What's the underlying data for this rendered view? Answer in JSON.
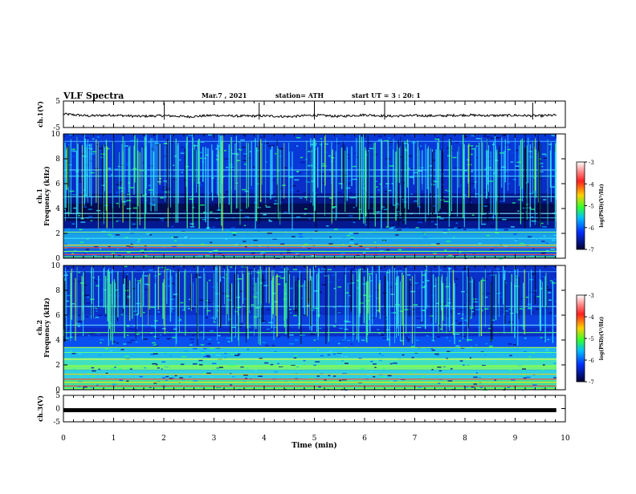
{
  "header": {
    "title": "VLF Spectra",
    "date": "Mar.7 , 2021",
    "station": "station= ATH",
    "start": "start UT =  3 : 20: 1"
  },
  "colorbar": {
    "label": "log(PSD)(V²/Hz)",
    "ticks": [
      "-3",
      "-4",
      "-5",
      "-6",
      "-7"
    ],
    "colors": [
      "#ffffff",
      "#ff2020",
      "#ffd000",
      "#30ff30",
      "#00c0ff",
      "#0030ff",
      "#000030"
    ]
  },
  "chart_data": [
    {
      "type": "line",
      "name": "ch1-waveform",
      "ylabel": "ch.1(V)",
      "ylim": [
        -5,
        5
      ],
      "yticks": [
        "5",
        "-5"
      ],
      "xlim": [
        0,
        10
      ],
      "x": [
        0,
        0.5,
        1,
        1.5,
        2,
        2.5,
        3,
        3.5,
        4,
        4.5,
        5,
        5.5,
        6,
        6.5,
        7,
        7.5,
        8,
        8.5,
        9,
        9.5,
        9.82
      ],
      "y": [
        0.1,
        -0.6,
        -0.3,
        -0.8,
        -0.5,
        -0.9,
        -0.4,
        -0.7,
        -0.6,
        -0.9,
        -0.3,
        -0.8,
        -0.2,
        -0.7,
        -0.5,
        -0.6,
        -0.3,
        -0.5,
        -0.4,
        -0.6,
        -0.3
      ]
    },
    {
      "type": "heatmap",
      "name": "ch1-spectrogram",
      "ylabel_top": "ch.1",
      "ylabel": "Frequency (kHz)",
      "ylim": [
        0,
        10
      ],
      "yticks": [
        "10",
        "8",
        "6",
        "4",
        "2",
        "0"
      ]
    },
    {
      "type": "heatmap",
      "name": "ch2-spectrogram",
      "ylabel_top": "ch.2",
      "ylabel": "Frequency (kHz)",
      "ylim": [
        0,
        10
      ],
      "yticks": [
        "10",
        "8",
        "6",
        "4",
        "2",
        "0"
      ]
    },
    {
      "type": "line",
      "name": "ch3-waveform",
      "ylabel": "ch.3(V)",
      "ylim": [
        -5,
        5
      ],
      "yticks": [
        "5",
        "0",
        "-5"
      ],
      "xlim": [
        0,
        10
      ],
      "x": [
        0,
        9.82
      ],
      "y": [
        0,
        0
      ]
    }
  ],
  "xaxis": {
    "label": "Time (min)",
    "ticks": [
      "0",
      "1",
      "2",
      "3",
      "4",
      "5",
      "6",
      "7",
      "8",
      "9",
      "10"
    ]
  }
}
